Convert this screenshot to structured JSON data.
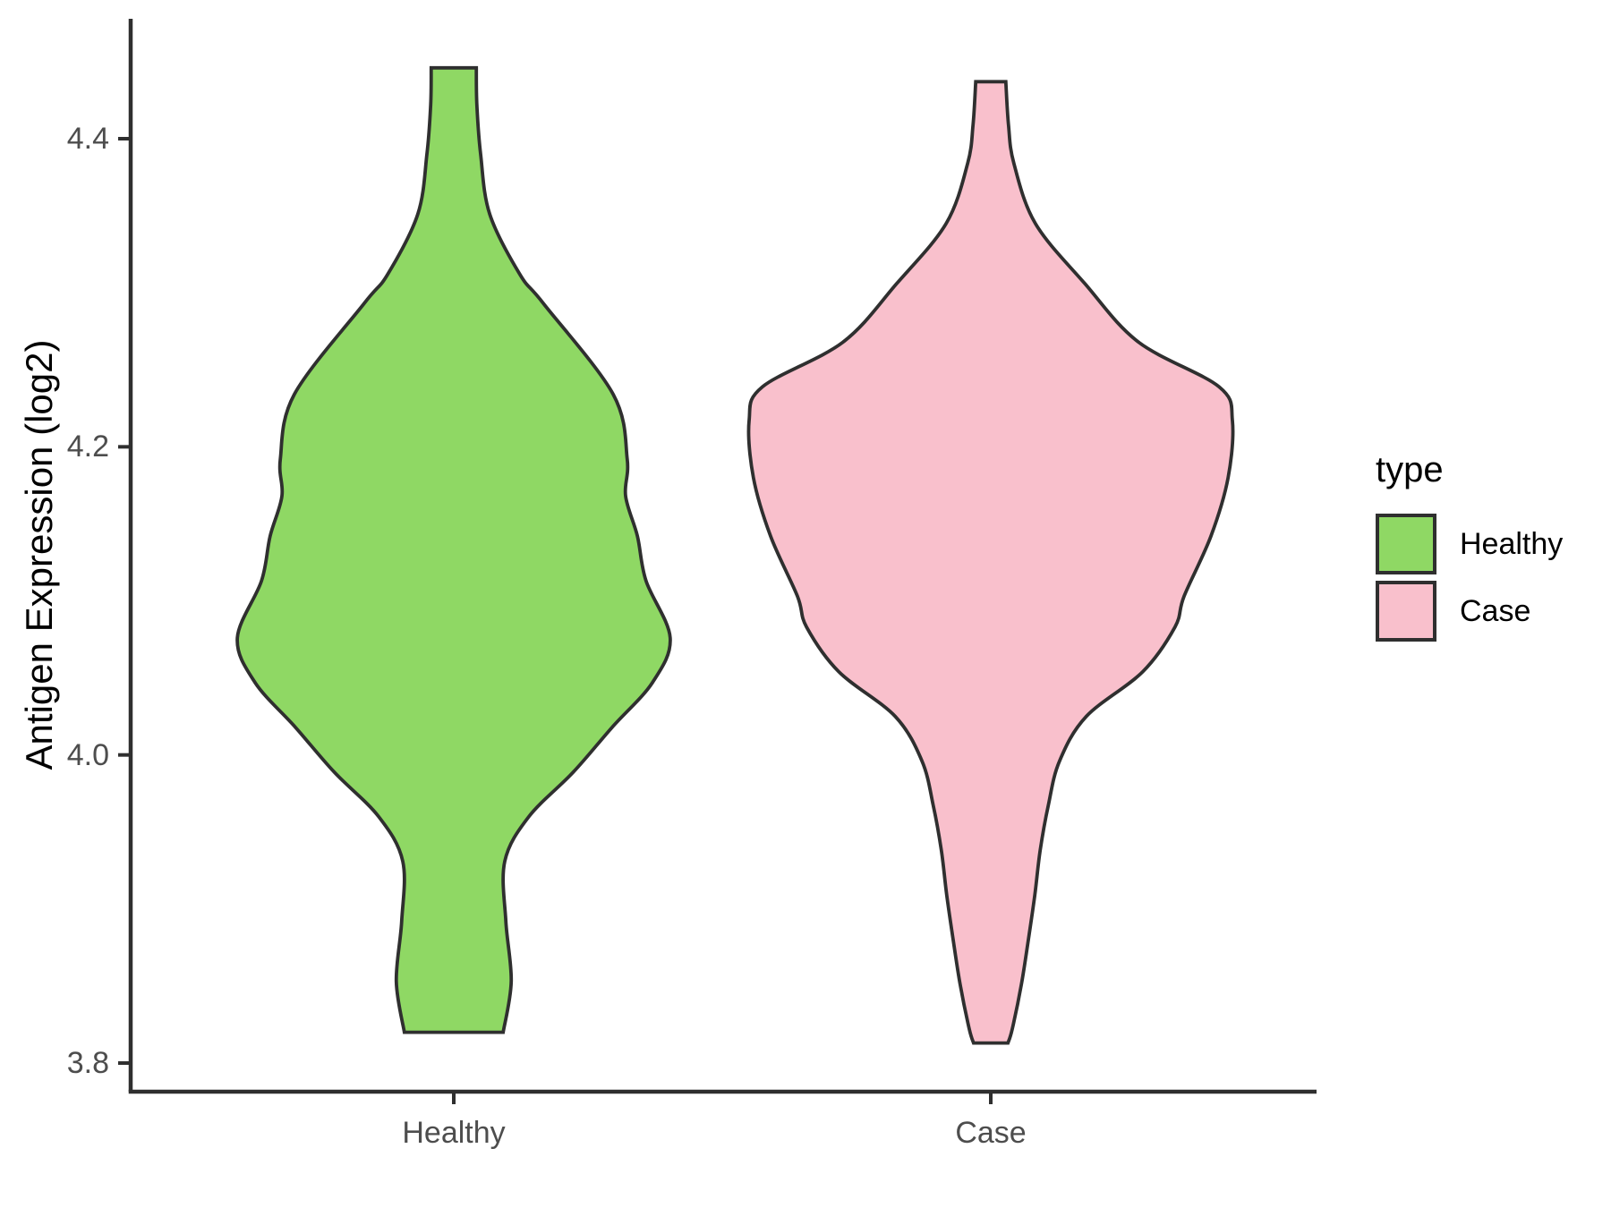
{
  "chart_data": {
    "type": "violin",
    "title": "",
    "xlabel": "",
    "ylabel": "Antigen Expression (log2)",
    "legend_title": "type",
    "legend_position": "right",
    "grid": "off",
    "categories": [
      "Healthy",
      "Case"
    ],
    "y_tick_labels": [
      "4.4",
      "4.2",
      "4.0",
      "3.8"
    ],
    "y_tick_values": [
      4.4,
      4.2,
      4.0,
      3.8
    ],
    "ylim": [
      3.78,
      4.48
    ],
    "violin_width": 0.9,
    "series": [
      {
        "name": "Healthy",
        "fill": "#8FD864",
        "data_min": 3.82,
        "data_max": 4.45,
        "profile": [
          [
            4.446,
            0.042
          ],
          [
            4.422,
            0.043
          ],
          [
            4.39,
            0.05
          ],
          [
            4.351,
            0.067
          ],
          [
            4.312,
            0.123
          ],
          [
            4.293,
            0.167
          ],
          [
            4.234,
            0.297
          ],
          [
            4.192,
            0.323
          ],
          [
            4.168,
            0.32
          ],
          [
            4.142,
            0.342
          ],
          [
            4.113,
            0.358
          ],
          [
            4.076,
            0.403
          ],
          [
            4.047,
            0.37
          ],
          [
            4.018,
            0.295
          ],
          [
            3.989,
            0.223
          ],
          [
            3.96,
            0.14
          ],
          [
            3.931,
            0.095
          ],
          [
            3.892,
            0.097
          ],
          [
            3.853,
            0.107
          ],
          [
            3.82,
            0.092
          ]
        ]
      },
      {
        "name": "Case",
        "fill": "#F9C0CC",
        "data_min": 3.81,
        "data_max": 4.44,
        "profile": [
          [
            4.437,
            0.028
          ],
          [
            4.409,
            0.033
          ],
          [
            4.384,
            0.043
          ],
          [
            4.345,
            0.083
          ],
          [
            4.306,
            0.175
          ],
          [
            4.268,
            0.275
          ],
          [
            4.239,
            0.425
          ],
          [
            4.217,
            0.45
          ],
          [
            4.18,
            0.442
          ],
          [
            4.142,
            0.41
          ],
          [
            4.103,
            0.36
          ],
          [
            4.083,
            0.343
          ],
          [
            4.054,
            0.283
          ],
          [
            4.025,
            0.178
          ],
          [
            3.996,
            0.128
          ],
          [
            3.967,
            0.107
          ],
          [
            3.938,
            0.092
          ],
          [
            3.909,
            0.082
          ],
          [
            3.88,
            0.07
          ],
          [
            3.851,
            0.057
          ],
          [
            3.822,
            0.04
          ],
          [
            3.813,
            0.032
          ]
        ]
      }
    ],
    "colors": {
      "outline": "#2F2F2F",
      "axis": "#2F2F2F",
      "tick_label": "#4D4D4D",
      "text": "#000000",
      "background": "#FFFFFF"
    }
  }
}
